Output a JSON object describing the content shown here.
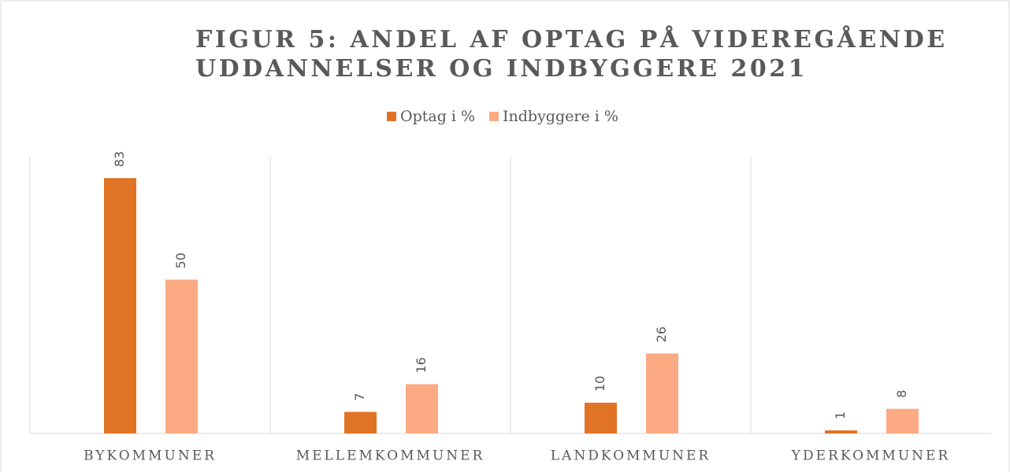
{
  "chart_data": {
    "type": "bar",
    "title": [
      "FIGUR 5: ANDEL AF OPTAG PÅ VIDEREGÅENDE",
      "UDDANNELSER OG INDBYGGERE 2021"
    ],
    "categories": [
      "BYKOMMUNER",
      "MELLEMKOMMUNER",
      "LANDKOMMUNER",
      "YDERKOMMUNER"
    ],
    "series": [
      {
        "name": "Optag i %",
        "color": "#E07324",
        "values": [
          83,
          7,
          10,
          1
        ]
      },
      {
        "name": "Indbyggere i %",
        "color": "#FBAA84",
        "values": [
          50,
          16,
          26,
          8
        ]
      }
    ],
    "ylim": [
      0,
      90
    ],
    "legend": "top"
  }
}
